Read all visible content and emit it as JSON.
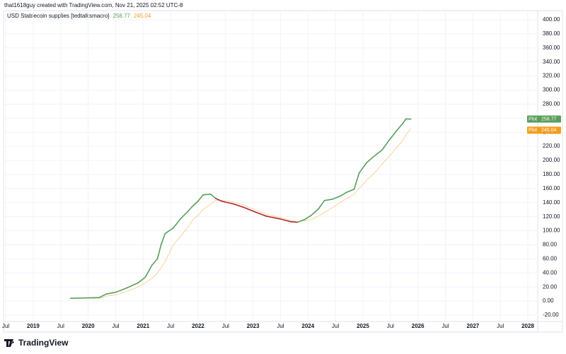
{
  "header": {
    "credit": "that1618guy created with TradingView.com, Nov 21, 2025 02:52 UTC-8"
  },
  "footer": {
    "brand": "TradingView"
  },
  "chart_data": {
    "type": "line",
    "title": "USD Stablecoin supplies [tedtalksmacro]",
    "x": [
      2019.68,
      2020.2,
      2020.33,
      2020.52,
      2020.71,
      2020.91,
      2021.04,
      2021.16,
      2021.26,
      2021.33,
      2021.4,
      2021.55,
      2021.68,
      2021.81,
      2021.9,
      2022.0,
      2022.09,
      2022.23,
      2022.32,
      2022.43,
      2022.65,
      2022.84,
      2023.03,
      2023.23,
      2023.48,
      2023.68,
      2023.81,
      2023.94,
      2024.06,
      2024.19,
      2024.3,
      2024.45,
      2024.58,
      2024.71,
      2024.84,
      2024.93,
      2025.07,
      2025.22,
      2025.35,
      2025.48,
      2025.61,
      2025.72,
      2025.78,
      2025.87
    ],
    "series": [
      {
        "name": "Plot",
        "color": "#5a9e5c",
        "down_color": "#b0262e",
        "values": [
          4,
          5,
          10,
          13,
          19,
          26,
          34,
          51,
          60,
          81,
          96,
          104,
          117,
          127,
          135,
          142,
          151,
          152,
          146,
          142,
          138,
          133,
          127,
          121,
          117,
          113,
          112,
          116,
          122,
          131,
          143,
          145,
          149,
          155,
          159,
          182,
          197,
          207,
          215,
          229,
          242,
          252,
          259,
          258.77
        ]
      },
      {
        "name": "Plot",
        "color": "#f59d1c",
        "values": [
          4,
          4,
          7,
          9,
          14,
          20,
          26,
          32,
          40,
          48,
          56,
          80,
          92,
          105,
          115,
          122,
          130,
          138,
          143,
          143,
          141,
          136,
          130,
          124,
          119,
          115,
          113,
          114,
          116,
          121,
          126,
          133,
          140,
          146,
          152,
          160,
          172,
          183,
          195,
          206,
          218,
          228,
          236,
          245.04
        ]
      }
    ],
    "xlim": [
      2018.46,
      2028.18
    ],
    "xticks": [
      {
        "value": 2018.5,
        "label": "Jul"
      },
      2019,
      {
        "value": 2019.5,
        "label": "Jul"
      },
      2020,
      {
        "value": 2020.5,
        "label": "Jul"
      },
      2021,
      {
        "value": 2021.5,
        "label": "Jul"
      },
      2022,
      {
        "value": 2022.5,
        "label": "Jul"
      },
      2023,
      {
        "value": 2023.5,
        "label": "Jul"
      },
      2024,
      {
        "value": 2024.5,
        "label": "Jul"
      },
      2025,
      {
        "value": 2025.5,
        "label": "Jul"
      },
      2026,
      {
        "value": 2026.5,
        "label": "Jul"
      },
      2027,
      {
        "value": 2027.5,
        "label": "Jul"
      },
      2028
    ],
    "ylim": [
      -29,
      413
    ],
    "yticks": [
      {
        "value": -20,
        "label": "-20.00"
      },
      {
        "value": 0,
        "label": "0.00"
      },
      {
        "value": 20,
        "label": "20.00"
      },
      {
        "value": 40,
        "label": "40.00"
      },
      {
        "value": 60,
        "label": "60.00"
      },
      {
        "value": 80,
        "label": "80.00"
      },
      {
        "value": 100,
        "label": "100.00"
      },
      {
        "value": 120,
        "label": "120.00"
      },
      {
        "value": 140,
        "label": "140.00"
      },
      {
        "value": 160,
        "label": "160.00"
      },
      {
        "value": 180,
        "label": "180.00"
      },
      {
        "value": 200,
        "label": "200.00"
      },
      {
        "value": 220,
        "label": "220.00"
      },
      {
        "value": 240,
        "label": "240.00"
      },
      {
        "value": 260,
        "label": "260.00"
      },
      {
        "value": 280,
        "label": "280.00"
      },
      {
        "value": 300,
        "label": "300.00"
      },
      {
        "value": 320,
        "label": "320.00"
      },
      {
        "value": 340,
        "label": "340.00"
      },
      {
        "value": 360,
        "label": "360.00"
      },
      {
        "value": 380,
        "label": "380.00"
      },
      {
        "value": 400,
        "label": "400.00"
      }
    ],
    "grid": true
  }
}
